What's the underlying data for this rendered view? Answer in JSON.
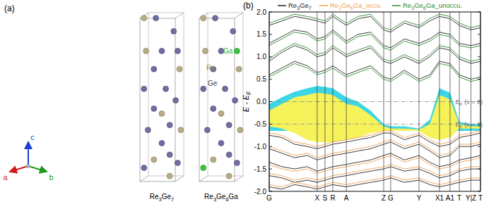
{
  "diagram": {
    "label": "(a)",
    "axes": [
      "a",
      "b",
      "c"
    ],
    "elements": [
      "Re",
      "Ge",
      "Ga"
    ],
    "structures": [
      "Re3Ge7",
      "Re3Ge6Ga"
    ]
  },
  "chart_data": {
    "type": "line",
    "title": "(b)",
    "ylabel": {
      "main": "E - E",
      "sub": "F"
    },
    "xlim": [
      0,
      1
    ],
    "ylim": [
      -2,
      2
    ],
    "xticks": [
      {
        "value": 0,
        "label": "G"
      },
      {
        "value": 0.227,
        "label": "X"
      },
      {
        "value": 0.264,
        "label": "S"
      },
      {
        "value": 0.301,
        "label": "R"
      },
      {
        "value": 0.365,
        "label": "A"
      },
      {
        "value": 0.542,
        "label": "Z"
      },
      {
        "value": 0.575,
        "label": "G"
      },
      {
        "value": 0.709,
        "label": "Y"
      },
      {
        "value": 0.806,
        "label": "X1"
      },
      {
        "value": 0.856,
        "label": "A1"
      },
      {
        "value": 0.9,
        "label": "T"
      },
      {
        "value": 0.955,
        "label": "Y|Z"
      },
      {
        "value": 1,
        "label": "T"
      }
    ],
    "yticks": [
      {
        "value": -2,
        "label": "-2.0"
      },
      -1.5,
      {
        "value": -1,
        "label": "-1.0"
      },
      -0.5,
      {
        "value": 0,
        "label": "0.0"
      },
      0.5,
      {
        "value": 1,
        "label": "1.0"
      },
      1.5,
      {
        "value": 2,
        "label": "2.0"
      }
    ],
    "grid": false,
    "legend": "top",
    "x": [
      0,
      0.06,
      0.12,
      0.18,
      0.227,
      0.264,
      0.301,
      0.365,
      0.42,
      0.48,
      0.542,
      0.575,
      0.64,
      0.709,
      0.76,
      0.806,
      0.856,
      0.9,
      0.955,
      1
    ],
    "fills": [
      {
        "color": "#3cd6e6",
        "upper": [
          -0.05,
          0.1,
          0.22,
          0.3,
          0.35,
          0.33,
          0.3,
          0.1,
          0.0,
          -0.2,
          -0.5,
          -0.55,
          -0.55,
          -0.6,
          -0.4,
          0.3,
          0.2,
          -0.45,
          -0.5,
          -0.5
        ],
        "lower": [
          -0.65,
          -0.65,
          -0.65,
          -0.65,
          -0.65,
          -0.65,
          -0.65,
          -0.65,
          -0.65,
          -0.65,
          -0.65,
          -0.65,
          -0.65,
          -0.65,
          -0.65,
          -0.65,
          -0.65,
          -0.65,
          -0.65,
          -0.65
        ]
      },
      {
        "color": "#f5f25a",
        "upper": [
          -0.2,
          -0.05,
          0.1,
          0.15,
          0.2,
          0.18,
          0.15,
          -0.05,
          -0.1,
          -0.3,
          -0.55,
          -0.6,
          -0.6,
          -0.62,
          -0.5,
          0.15,
          0.05,
          -0.5,
          -0.55,
          -0.55
        ],
        "lower": [
          -0.55,
          -0.6,
          -0.7,
          -0.85,
          -0.9,
          -0.9,
          -0.9,
          -0.85,
          -0.8,
          -0.7,
          -0.65,
          -0.65,
          -0.65,
          -0.65,
          -0.8,
          -0.85,
          -0.8,
          -0.6,
          -0.6,
          -0.6
        ]
      }
    ],
    "reference_lines": [
      {
        "value": 0,
        "main": "E",
        "sub": "F",
        "tail": " (x = 0)",
        "line_style": "dashdot"
      },
      {
        "value": -0.5,
        "main": "E",
        "sub": "F",
        "tail": " (x = 1)",
        "line_style": "dashdot"
      }
    ],
    "series": [
      {
        "name": "Re3Ge7",
        "color": "#222222",
        "bands": [
          [
            0.6,
            0.75,
            0.9,
            0.8,
            0.65,
            0.7,
            0.8,
            0.6,
            0.7,
            0.8,
            0.55,
            0.5,
            0.7,
            0.5,
            0.6,
            0.9,
            0.85,
            0.6,
            0.5,
            0.55
          ],
          [
            0.9,
            1.1,
            1.25,
            1.15,
            1.0,
            1.05,
            1.2,
            1.0,
            1.1,
            1.2,
            0.9,
            0.85,
            1.0,
            0.85,
            1.0,
            1.2,
            1.15,
            0.95,
            0.85,
            0.9
          ],
          [
            1.3,
            1.45,
            1.6,
            1.55,
            1.4,
            1.45,
            1.6,
            1.35,
            1.5,
            1.55,
            1.25,
            1.2,
            1.4,
            1.3,
            1.4,
            1.55,
            1.5,
            1.3,
            1.25,
            1.3
          ],
          [
            1.7,
            1.8,
            1.9,
            1.85,
            1.8,
            1.75,
            1.9,
            1.7,
            1.85,
            1.9,
            1.6,
            1.55,
            1.75,
            1.65,
            1.8,
            1.9,
            1.85,
            1.7,
            1.6,
            1.65
          ],
          [
            -0.75,
            -0.8,
            -0.95,
            -1.0,
            -1.05,
            -1.0,
            -0.95,
            -0.9,
            -0.85,
            -0.8,
            -0.7,
            -0.7,
            -0.85,
            -0.75,
            -0.9,
            -1.0,
            -0.95,
            -0.8,
            -0.75,
            -0.7
          ],
          [
            -1.05,
            -1.15,
            -1.25,
            -1.2,
            -1.3,
            -1.25,
            -1.2,
            -1.15,
            -1.1,
            -1.05,
            -0.95,
            -0.9,
            -1.05,
            -0.95,
            -1.1,
            -1.25,
            -1.2,
            -1.0,
            -1.0,
            -0.95
          ],
          [
            -1.35,
            -1.45,
            -1.5,
            -1.45,
            -1.55,
            -1.5,
            -1.45,
            -1.4,
            -1.35,
            -1.3,
            -1.2,
            -1.15,
            -1.3,
            -1.2,
            -1.35,
            -1.45,
            -1.4,
            -1.3,
            -1.25,
            -1.2
          ],
          [
            -1.65,
            -1.7,
            -1.8,
            -1.75,
            -1.8,
            -1.75,
            -1.7,
            -1.65,
            -1.6,
            -1.55,
            -1.5,
            -1.45,
            -1.55,
            -1.5,
            -1.6,
            -1.7,
            -1.65,
            -1.55,
            -1.5,
            -1.5
          ],
          [
            -1.9,
            -1.95,
            -1.85,
            -1.9,
            -1.95,
            -1.9,
            -1.85,
            -1.9,
            -1.85,
            -1.8,
            -1.75,
            -1.7,
            -1.8,
            -1.75,
            -1.85,
            -1.9,
            -1.85,
            -1.8,
            -1.75,
            -1.75
          ]
        ]
      },
      {
        "name": "Re3Ge6Ga_occu.",
        "color": "#f0a050",
        "bands": [
          [
            -0.7,
            -0.75,
            -0.9,
            -0.95,
            -1.0,
            -0.95,
            -0.9,
            -0.85,
            -0.8,
            -0.75,
            -0.65,
            -0.65,
            -0.8,
            -0.7,
            -0.85,
            -0.95,
            -0.9,
            -0.75,
            -0.7,
            -0.65
          ],
          [
            -1.0,
            -1.1,
            -1.2,
            -1.15,
            -1.25,
            -1.2,
            -1.15,
            -1.1,
            -1.05,
            -1.0,
            -0.9,
            -0.85,
            -1.0,
            -0.9,
            -1.05,
            -1.2,
            -1.15,
            -0.95,
            -0.95,
            -0.9
          ],
          [
            -1.4,
            -1.5,
            -1.55,
            -1.5,
            -1.6,
            -1.55,
            -1.5,
            -1.45,
            -1.4,
            -1.35,
            -1.25,
            -1.2,
            -1.35,
            -1.25,
            -1.4,
            -1.5,
            -1.45,
            -1.35,
            -1.3,
            -1.25
          ],
          [
            -1.6,
            -1.65,
            -1.75,
            -1.7,
            -1.75,
            -1.7,
            -1.65,
            -1.6,
            -1.55,
            -1.5,
            -1.45,
            -1.4,
            -1.5,
            -1.45,
            -1.55,
            -1.65,
            -1.6,
            -1.5,
            -1.45,
            -1.45
          ],
          [
            -1.85,
            -1.9,
            -1.8,
            -1.85,
            -1.9,
            -1.85,
            -1.8,
            -1.85,
            -1.8,
            -1.75,
            -1.7,
            -1.65,
            -1.75,
            -1.7,
            -1.8,
            -1.85,
            -1.8,
            -1.75,
            -1.7,
            -1.7
          ]
        ]
      },
      {
        "name": "Re3Ge6Ga_unoccu.",
        "color": "#2a8a2a",
        "bands": [
          [
            0.55,
            0.7,
            0.85,
            0.75,
            0.6,
            0.65,
            0.75,
            0.55,
            0.65,
            0.75,
            0.5,
            0.45,
            0.65,
            0.45,
            0.55,
            0.85,
            0.8,
            0.55,
            0.45,
            0.5
          ],
          [
            0.95,
            1.15,
            1.3,
            1.2,
            1.05,
            1.1,
            1.25,
            1.05,
            1.15,
            1.25,
            0.95,
            0.9,
            1.05,
            0.9,
            1.05,
            1.25,
            1.2,
            1.0,
            0.9,
            0.95
          ],
          [
            1.25,
            1.4,
            1.55,
            1.5,
            1.35,
            1.4,
            1.55,
            1.3,
            1.45,
            1.5,
            1.2,
            1.15,
            1.35,
            1.25,
            1.35,
            1.5,
            1.45,
            1.25,
            1.2,
            1.25
          ],
          [
            1.75,
            1.85,
            1.95,
            1.9,
            1.85,
            1.8,
            1.95,
            1.75,
            1.9,
            1.95,
            1.65,
            1.6,
            1.8,
            1.7,
            1.85,
            1.95,
            1.9,
            1.75,
            1.65,
            1.7
          ]
        ]
      }
    ]
  }
}
